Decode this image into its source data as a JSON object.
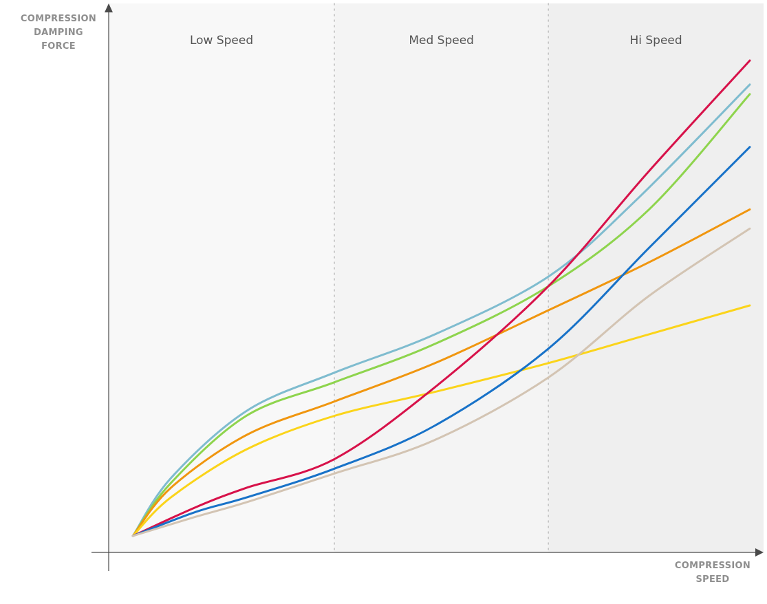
{
  "chart_data": {
    "type": "line",
    "title": "",
    "ylabel": [
      "COMPRESSION",
      "DAMPING",
      "FORCE"
    ],
    "xlabel": [
      "COMPRESSION",
      "SPEED"
    ],
    "x_ticks": false,
    "y_ticks": false,
    "xlim": [
      0,
      100
    ],
    "ylim": [
      0,
      100
    ],
    "grid": false,
    "legend": "none",
    "regions": [
      {
        "label": "Low Speed",
        "x0": 0,
        "x1": 34,
        "fill": "#f8f8f8"
      },
      {
        "label": "Med Speed",
        "x0": 34,
        "x1": 68,
        "fill": "#f4f4f4"
      },
      {
        "label": "Hi Speed",
        "x0": 68,
        "x1": 100,
        "fill": "#efefef"
      }
    ],
    "series": [
      {
        "color": "#7fbccf",
        "points": [
          [
            2,
            2
          ],
          [
            8,
            14
          ],
          [
            20,
            28
          ],
          [
            34,
            36
          ],
          [
            50,
            44
          ],
          [
            68,
            56
          ],
          [
            82,
            72
          ],
          [
            100,
            96
          ]
        ]
      },
      {
        "color": "#8ed44d",
        "points": [
          [
            2,
            2
          ],
          [
            8,
            13
          ],
          [
            20,
            27
          ],
          [
            34,
            34
          ],
          [
            50,
            42
          ],
          [
            68,
            54
          ],
          [
            84,
            70
          ],
          [
            100,
            94
          ]
        ]
      },
      {
        "color": "#f0960f",
        "points": [
          [
            2,
            2
          ],
          [
            8,
            12
          ],
          [
            20,
            23
          ],
          [
            34,
            30
          ],
          [
            50,
            38
          ],
          [
            68,
            49
          ],
          [
            84,
            59
          ],
          [
            100,
            70
          ]
        ]
      },
      {
        "color": "#fbd41a",
        "points": [
          [
            2,
            2
          ],
          [
            8,
            10
          ],
          [
            20,
            20
          ],
          [
            34,
            27
          ],
          [
            50,
            32
          ],
          [
            68,
            38
          ],
          [
            84,
            44
          ],
          [
            100,
            50
          ]
        ]
      },
      {
        "color": "#d7124a",
        "points": [
          [
            2,
            2
          ],
          [
            12,
            8
          ],
          [
            20,
            12
          ],
          [
            34,
            18
          ],
          [
            50,
            33
          ],
          [
            68,
            54
          ],
          [
            84,
            78
          ],
          [
            100,
            101
          ]
        ]
      },
      {
        "color": "#1872c8",
        "points": [
          [
            2,
            2
          ],
          [
            12,
            7
          ],
          [
            20,
            10
          ],
          [
            34,
            16
          ],
          [
            50,
            25
          ],
          [
            68,
            41
          ],
          [
            84,
            62
          ],
          [
            100,
            83
          ]
        ]
      },
      {
        "color": "#d3c4b3",
        "points": [
          [
            2,
            2
          ],
          [
            12,
            6
          ],
          [
            20,
            9
          ],
          [
            34,
            15
          ],
          [
            50,
            22
          ],
          [
            68,
            35
          ],
          [
            84,
            52
          ],
          [
            100,
            66
          ]
        ]
      }
    ]
  }
}
